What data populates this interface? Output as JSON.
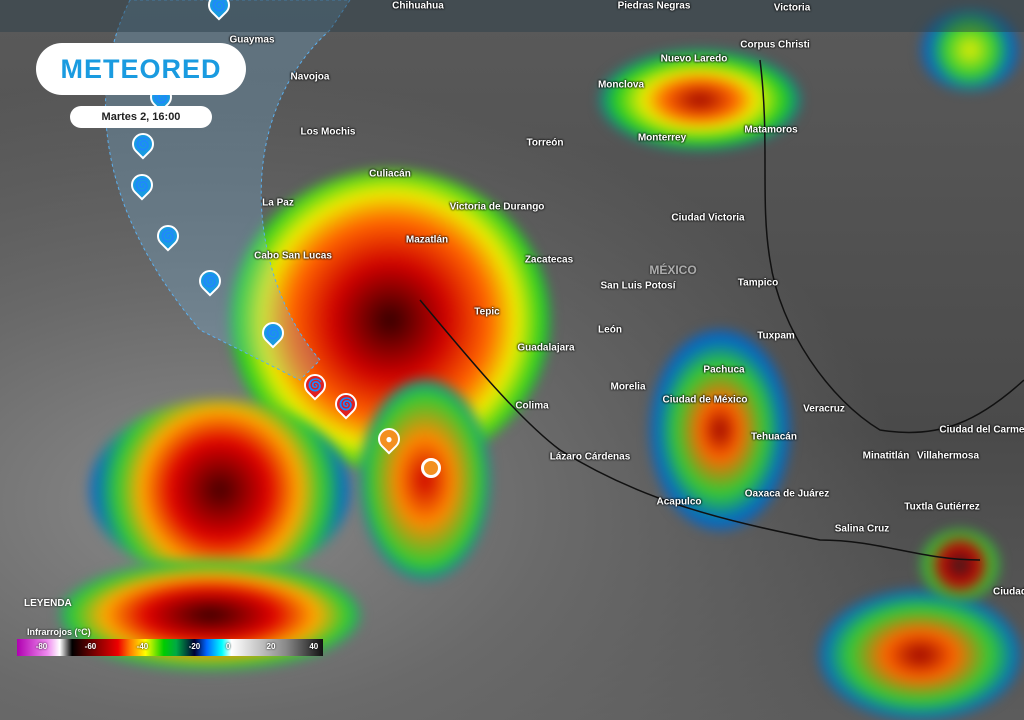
{
  "brand": {
    "logo_text": "METEORED",
    "accent": "#1a9be0"
  },
  "timestamp": "Martes 2, 16:00",
  "legend": {
    "title": "LEYENDA",
    "layer": "Infrarrojos (°C)",
    "ticks": [
      "-80",
      "-60",
      "-40",
      "-20",
      "0",
      "20",
      "40"
    ]
  },
  "cities": [
    "Chihuahua",
    "Piedras Negras",
    "Victoria",
    "Guaymas",
    "Nuevo Laredo",
    "Corpus Christi",
    "Navojoa",
    "Monclova",
    "Los Mochis",
    "Monterrey",
    "Matamoros",
    "Torreón",
    "Culiacán",
    "La Paz",
    "Victoria de Durango",
    "Ciudad Victoria",
    "Mazatlán",
    "Cabo San Lucas",
    "Zacatecas",
    "MÉXICO",
    "San Luis Potosí",
    "Tampico",
    "Tepic",
    "León",
    "Guadalajara",
    "Tuxpam",
    "Pachuca",
    "Morelia",
    "Ciudad de México",
    "Veracruz",
    "Colima",
    "Ciudad del Carmen",
    "Tehuacán",
    "Lázaro Cárdenas",
    "Minatitlán",
    "Villahermosa",
    "Oaxaca de Juárez",
    "Acapulco",
    "Tuxtla Gutiérrez",
    "Salina Cruz",
    "Ciudad"
  ],
  "track_icons": [
    "hurricane-icon",
    "hurricane-icon",
    "hurricane-icon",
    "hurricane-icon",
    "hurricane-icon",
    "hurricane-icon",
    "hurricane-icon",
    "hurricane-icon",
    "storm-icon",
    "low-icon"
  ]
}
